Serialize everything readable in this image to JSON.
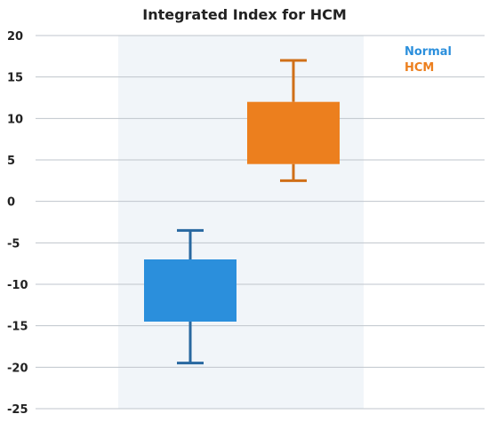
{
  "chart_data": {
    "type": "box",
    "title": "Integrated Index for HCM",
    "xlabel": "",
    "ylabel": "",
    "ylim": [
      -25,
      20
    ],
    "yticks": [
      20,
      15,
      10,
      5,
      0,
      -5,
      -10,
      -15,
      -20,
      -25
    ],
    "grid": true,
    "legend_position": "top-right",
    "band_color": "#f1f5f9",
    "series": [
      {
        "name": "Normal",
        "color": "#2b8fdc",
        "whisker_color": "#2868a0",
        "min": -19.5,
        "q1": -14.5,
        "q3": -7,
        "max": -3.5
      },
      {
        "name": "HCM",
        "color": "#ec7f1e",
        "whisker_color": "#d06f18",
        "min": 2.5,
        "q1": 4.5,
        "q3": 12,
        "max": 17
      }
    ]
  }
}
